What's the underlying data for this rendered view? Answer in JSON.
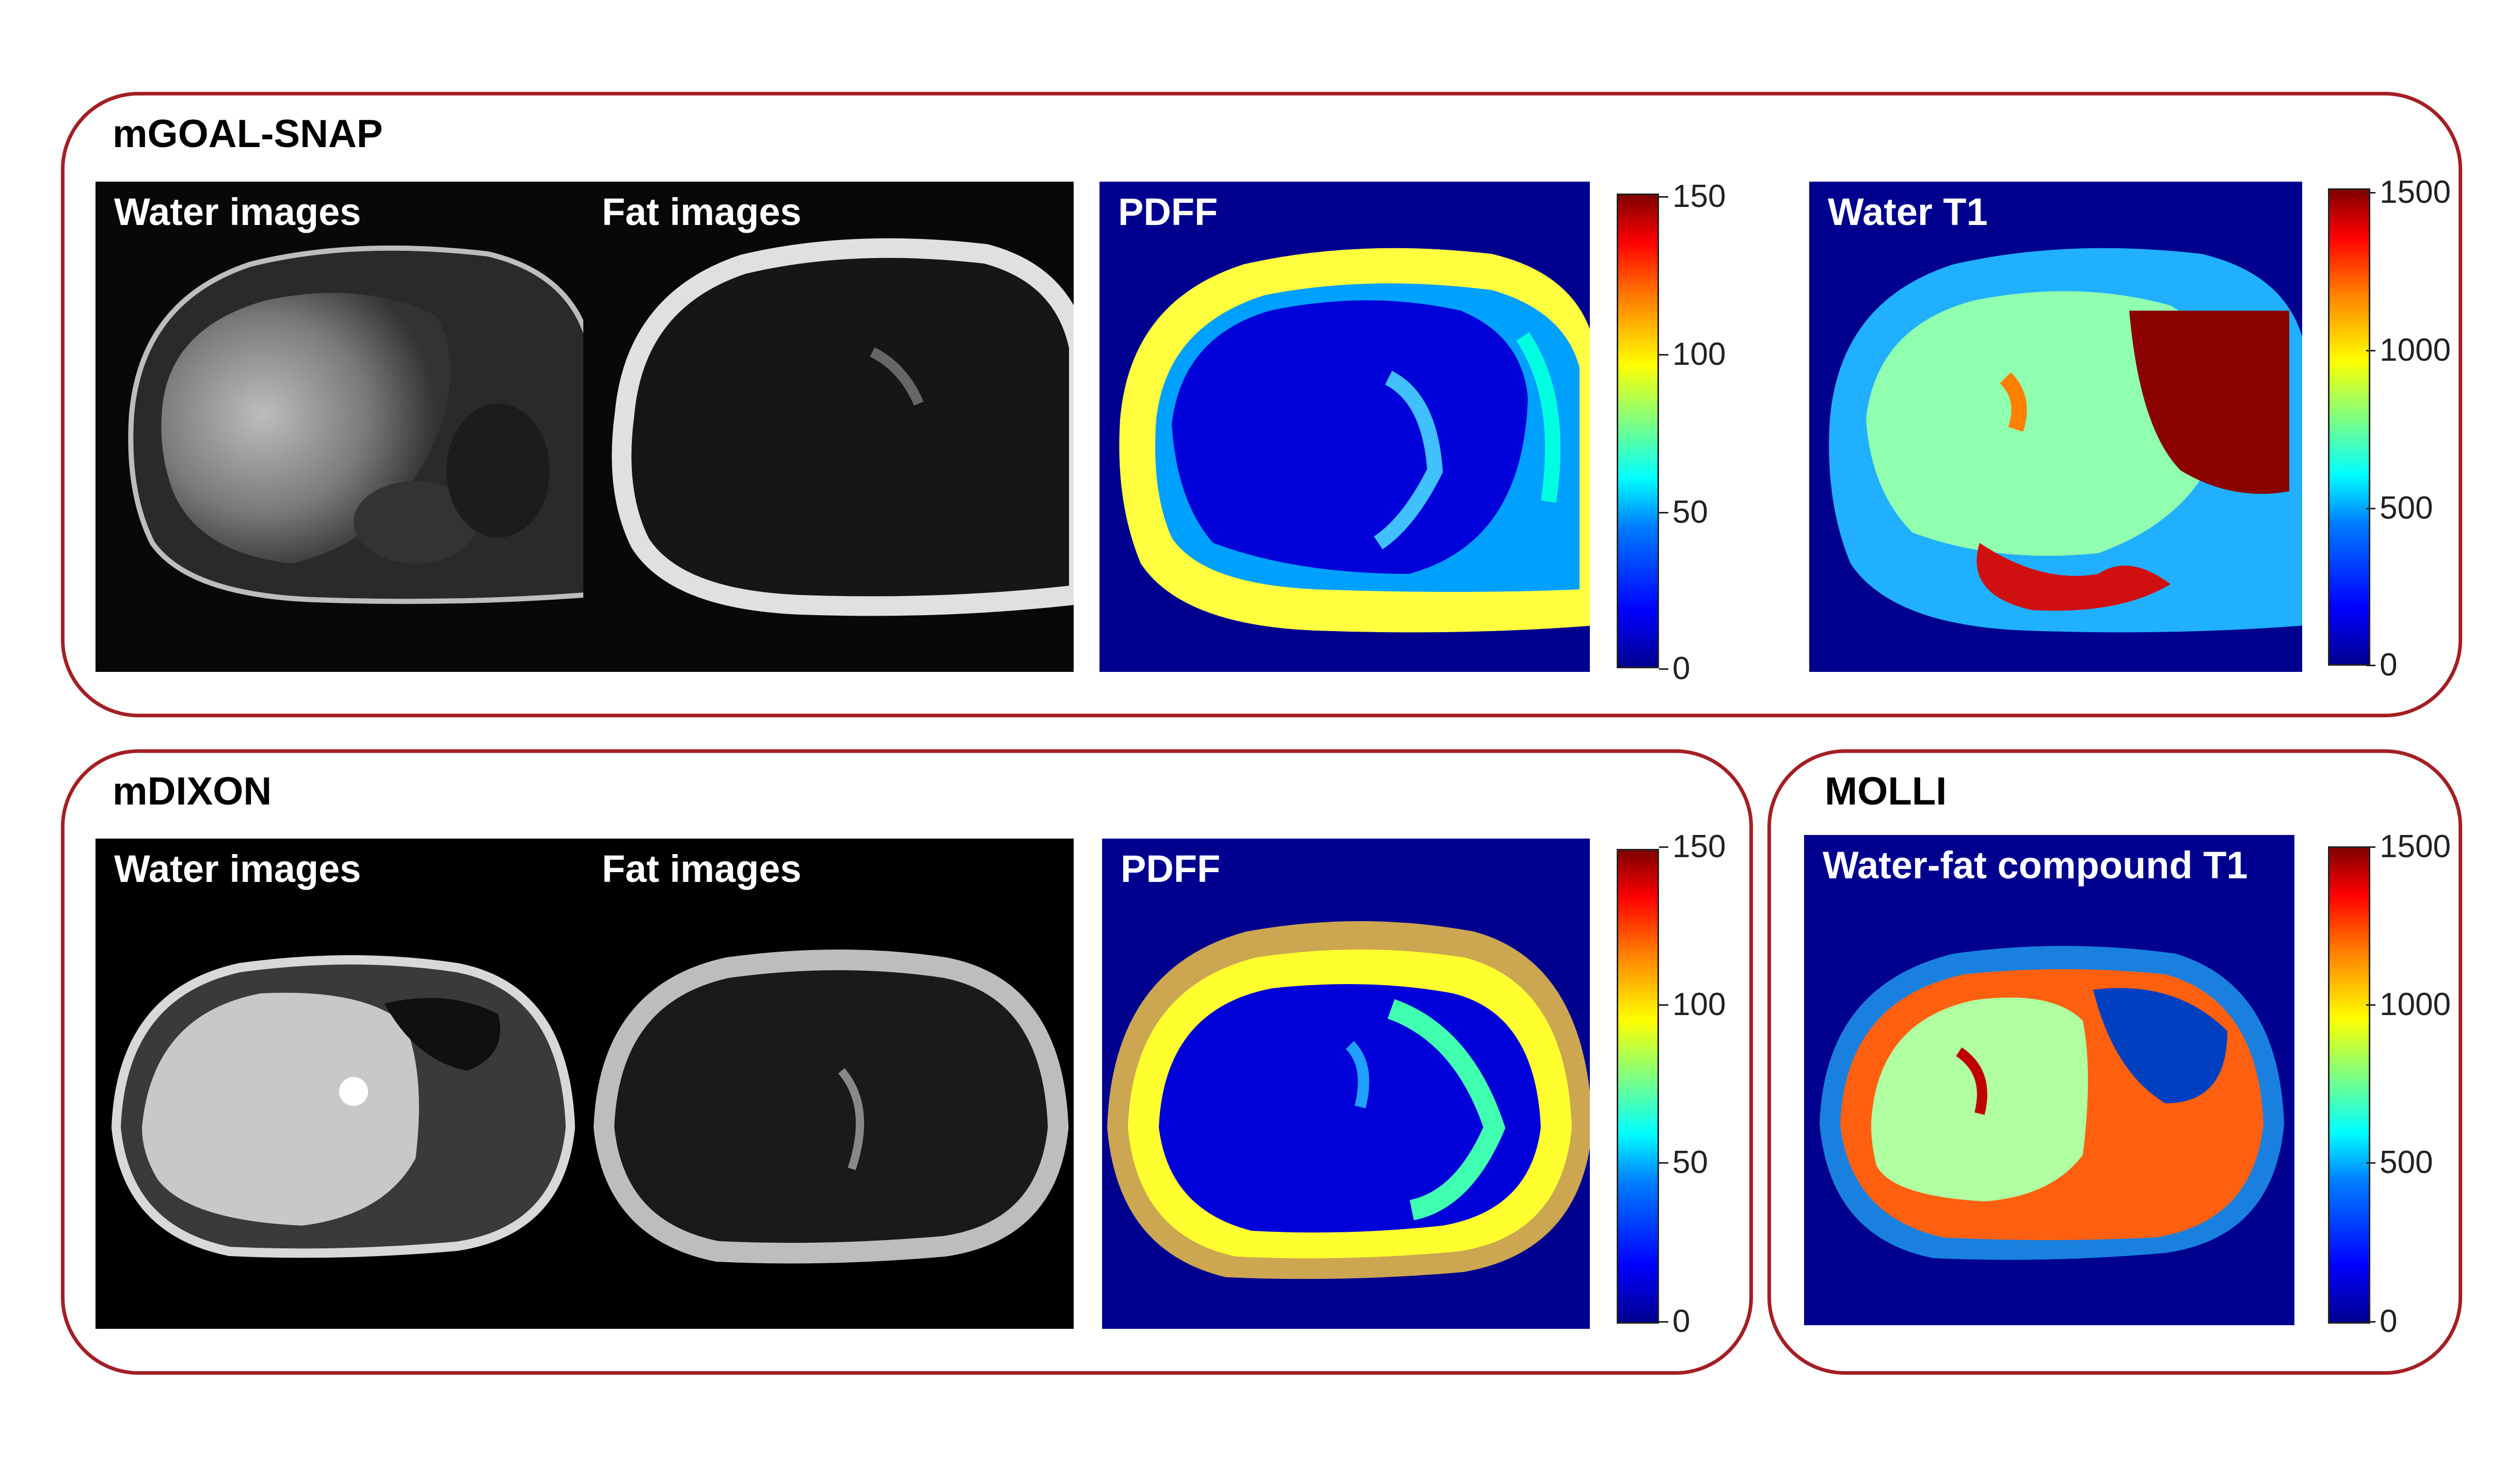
{
  "groups": {
    "mgoal": {
      "title": "mGOAL-SNAP",
      "panels": {
        "water": "Water images",
        "fat": "Fat images",
        "pdff": "PDFF",
        "t1": "Water T1"
      },
      "pdff_colorbar": [
        "150",
        "100",
        "50",
        "0"
      ],
      "t1_colorbar": [
        "1500",
        "1000",
        "500",
        "0"
      ]
    },
    "mdixon": {
      "title": "mDIXON",
      "panels": {
        "water": "Water images",
        "fat": "Fat images",
        "pdff": "PDFF"
      },
      "pdff_colorbar": [
        "150",
        "100",
        "50",
        "0"
      ]
    },
    "molli": {
      "title": "MOLLI",
      "panels": {
        "t1": "Water-fat compound T1"
      },
      "t1_colorbar": [
        "1500",
        "1000",
        "500",
        "0"
      ]
    }
  },
  "colors": {
    "group_border": "#a31f24",
    "map_background": "#00008f"
  }
}
